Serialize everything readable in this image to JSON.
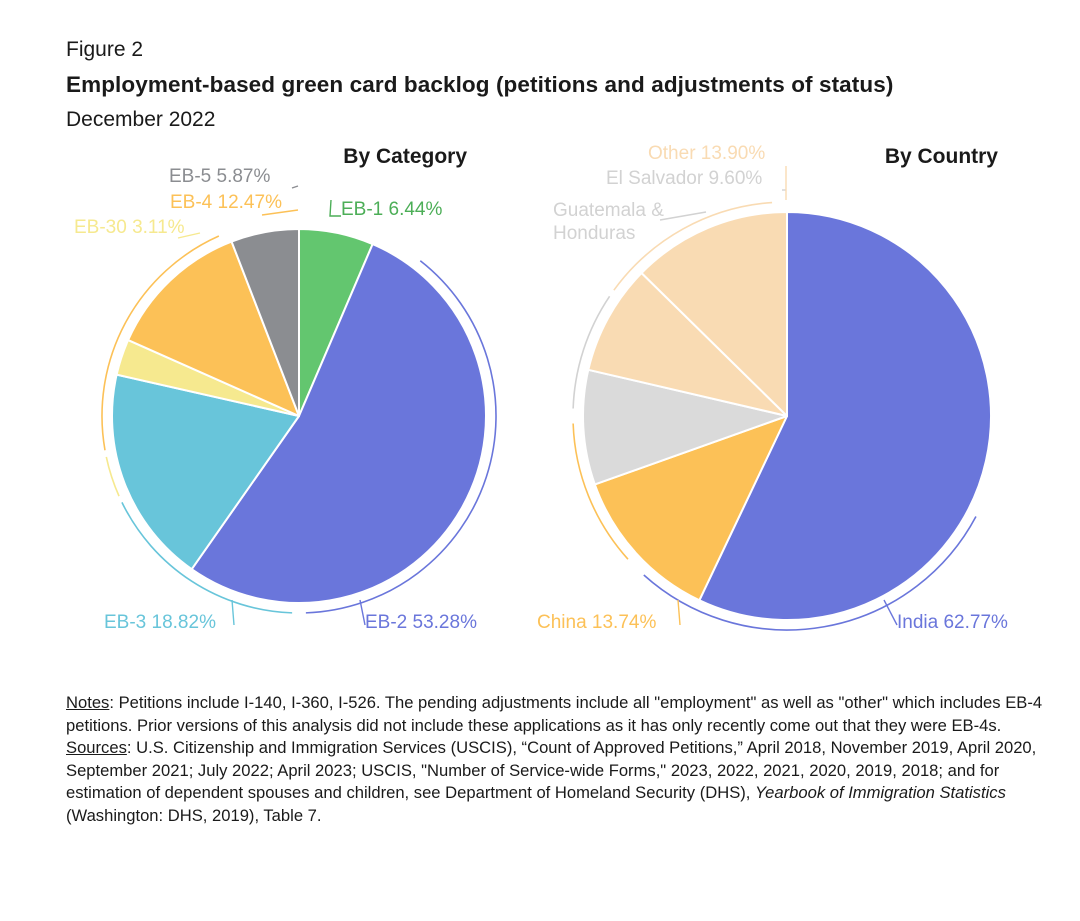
{
  "figure_label": "Figure 2",
  "title": "Employment-based green card backlog (petitions and adjustments of status)",
  "subtitle": "December 2022",
  "chart_data": [
    {
      "type": "pie",
      "title": "By Category",
      "slices": [
        {
          "label": "EB-1",
          "value": 6.44,
          "text": "EB-1 6.44%",
          "color": "#63c66f"
        },
        {
          "label": "EB-2",
          "value": 53.28,
          "text": "EB-2 53.28%",
          "color": "#6a76db"
        },
        {
          "label": "EB-3",
          "value": 18.82,
          "text": "EB-3 18.82%",
          "color": "#68c5da"
        },
        {
          "label": "EB-30",
          "value": 3.11,
          "text": "EB-30 3.11%",
          "color": "#f6e98f"
        },
        {
          "label": "EB-4",
          "value": 12.47,
          "text": "EB-4 12.47%",
          "color": "#fcc157"
        },
        {
          "label": "EB-5",
          "value": 5.87,
          "text": "EB-5 5.87%",
          "color": "#8b8d91"
        }
      ]
    },
    {
      "type": "pie",
      "title": "By Country",
      "slices": [
        {
          "label": "India",
          "value": 62.77,
          "text": "India 62.77%",
          "color": "#6a76db"
        },
        {
          "label": "China",
          "value": 13.74,
          "text": "China 13.74%",
          "color": "#fcc157"
        },
        {
          "label": "Guatemala & Honduras",
          "value": 9.99,
          "text": "Guatemala & Honduras",
          "color": "#dadada"
        },
        {
          "label": "El Salvador",
          "value": 9.6,
          "text": "El Salvador 9.60%",
          "color": "#f9dbb3"
        },
        {
          "label": "Other",
          "value": 13.9,
          "text": "Other 13.90%",
          "color": "#f9dbb3"
        }
      ]
    }
  ],
  "notes": {
    "notes_label": "Notes",
    "notes_text": ": Petitions include I-140, I-360, I-526. The pending adjustments include all \"employment\" as well as \"other\" which includes EB-4 petitions. Prior versions of this analysis did not include these applications as it has only recently come out that they were EB-4s.",
    "sources_label": "Sources",
    "sources_text_1": ": U.S. Citizenship and Immigration Services (USCIS), “Count of Approved Petitions,” April 2018, November 2019, April 2020, September 2021; July 2022; April 2023; USCIS, \"Number of Service-wide Forms,\" 2023, 2022, 2021, 2020, 2019, 2018; and for estimation of dependent spouses and children, see Department of Homeland Security (DHS), ",
    "sources_italic": "Yearbook of Immigration Statistics",
    "sources_text_2": " (Washington: DHS, 2019), Table 7."
  }
}
